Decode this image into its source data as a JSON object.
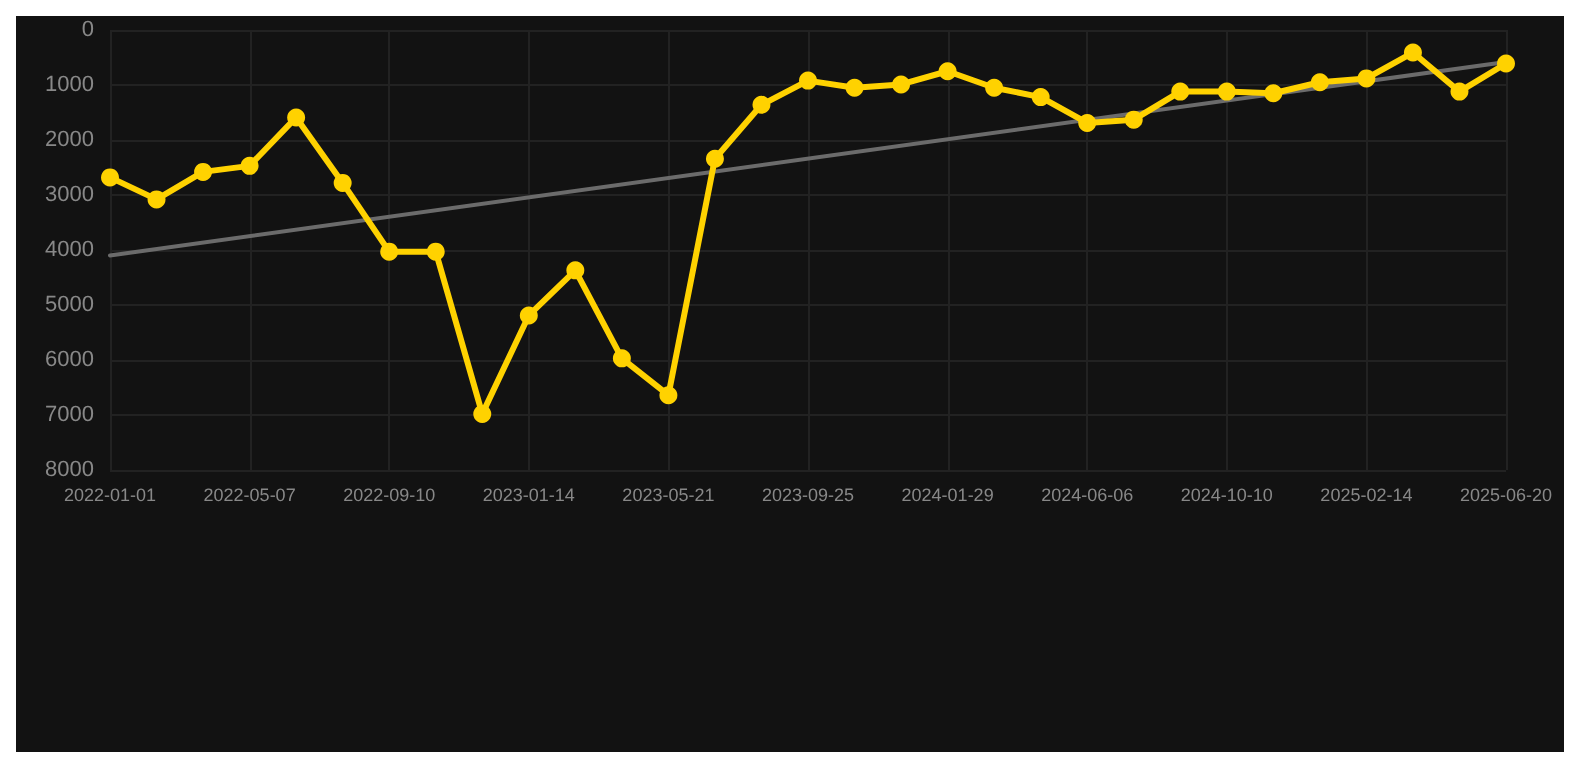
{
  "chart_data": {
    "type": "line",
    "categories": [
      "2022-01-01",
      null,
      null,
      "2022-05-07",
      null,
      null,
      "2022-09-10",
      null,
      null,
      "2023-01-14",
      null,
      null,
      "2023-05-21",
      null,
      null,
      "2023-09-25",
      null,
      null,
      "2024-01-29",
      null,
      null,
      "2024-06-06",
      null,
      null,
      "2024-10-10",
      null,
      null,
      "2025-02-14",
      null,
      null,
      "2025-06-20"
    ],
    "series": [
      {
        "color": "#ffd200",
        "marker": "circle",
        "values": [
          2680,
          3080,
          2580,
          2470,
          1590,
          2780,
          4030,
          4030,
          6980,
          5190,
          4370,
          5970,
          6640,
          2340,
          1360,
          920,
          1050,
          990,
          750,
          1050,
          1220,
          1690,
          1630,
          1120,
          1120,
          1150,
          950,
          880,
          410,
          1120,
          610
        ]
      },
      {
        "type": "line",
        "color": "#6b6b6b",
        "marker": "none",
        "values": [
          4100,
          null,
          null,
          null,
          null,
          null,
          null,
          null,
          null,
          null,
          null,
          null,
          null,
          null,
          null,
          null,
          null,
          null,
          null,
          null,
          null,
          null,
          null,
          null,
          null,
          null,
          null,
          null,
          null,
          null,
          580
        ]
      }
    ],
    "ylim": [
      8000,
      0
    ],
    "yticks": [
      0,
      1000,
      2000,
      3000,
      4000,
      5000,
      6000,
      7000,
      8000
    ],
    "grid": true,
    "line_style": "solid"
  }
}
